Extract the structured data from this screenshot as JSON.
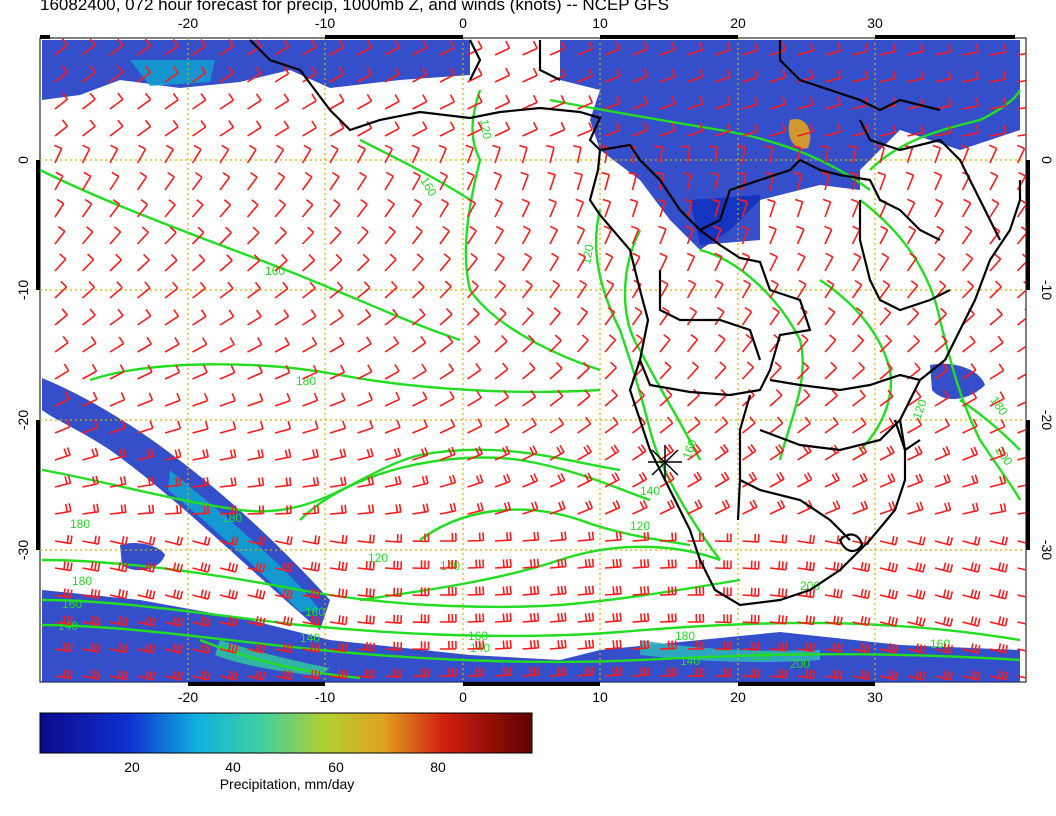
{
  "title": "16082400, 072 hour forecast for precip, 1000mb Z, and winds (knots) -- NCEP GFS",
  "map": {
    "lon_ticks": [
      "-20",
      "-10",
      "0",
      "10",
      "20",
      "30"
    ],
    "lat_ticks": [
      "0",
      "-10",
      "-20",
      "-30"
    ],
    "contour_labels": [
      "120",
      "140",
      "160",
      "180",
      "200"
    ],
    "colors": {
      "contour": "#22dd22",
      "barbs": "#ff1a1a",
      "coast": "#000000",
      "grid": "#d4b000",
      "precip_low": "#0a0a9a",
      "precip_high": "#8b0000"
    }
  },
  "colorbar": {
    "labels": [
      "20",
      "40",
      "60",
      "80"
    ],
    "title": "Precipitation, mm/day",
    "range": [
      0,
      100
    ]
  }
}
